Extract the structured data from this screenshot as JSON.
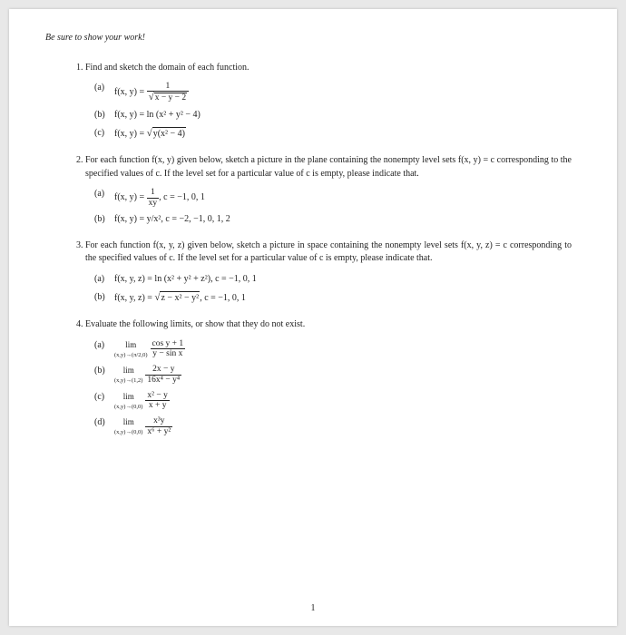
{
  "instruction": "Be sure to show your work!",
  "q1": {
    "prompt": "Find and sketch the domain of each function.",
    "a_lhs": "f(x, y) = ",
    "a_num": "1",
    "a_den_rad": "x − y − 2",
    "b": "f(x, y) = ln (x² + y² − 4)",
    "c_lhs": "f(x, y) = ",
    "c_rad": "y(x² − 4)"
  },
  "q2": {
    "prompt": "For each function f(x, y) given below, sketch a picture in the plane containing the nonempty level sets f(x, y) = c corresponding to the specified values of c. If the level set for a particular value of c is empty, please indicate that.",
    "a_lhs": "f(x, y) = ",
    "a_num": "1",
    "a_den": "xy",
    "a_c": ",    c = −1, 0, 1",
    "b": "f(x, y) = y/x²,    c = −2, −1, 0, 1, 2"
  },
  "q3": {
    "prompt": "For each function f(x, y, z) given below, sketch a picture in space containing the nonempty level sets f(x, y, z) = c corresponding to the specified values of c. If the level set for a particular value of c is empty, please indicate that.",
    "a": "f(x, y, z) = ln (x² + y² + z²),    c = −1, 0, 1",
    "b_lhs": "f(x, y, z) = ",
    "b_rad": "z − x² − y²",
    "b_c": ",    c = −1, 0, 1"
  },
  "q4": {
    "prompt": "Evaluate the following limits, or show that they do not exist.",
    "a_sub": "(x,y)→(π/2,0)",
    "a_num": "cos y + 1",
    "a_den": "y − sin x",
    "b_sub": "(x,y)→(1,2)",
    "b_num": "2x − y",
    "b_den": "16x⁴ − y⁴",
    "c_sub": "(x,y)→(0,0)",
    "c_num": "x² − y",
    "c_den": "x + y",
    "d_sub": "(x,y)→(0,0)",
    "d_num": "x³y",
    "d_den": "x⁶ + y²"
  },
  "lim_label": "lim",
  "page_number": "1"
}
